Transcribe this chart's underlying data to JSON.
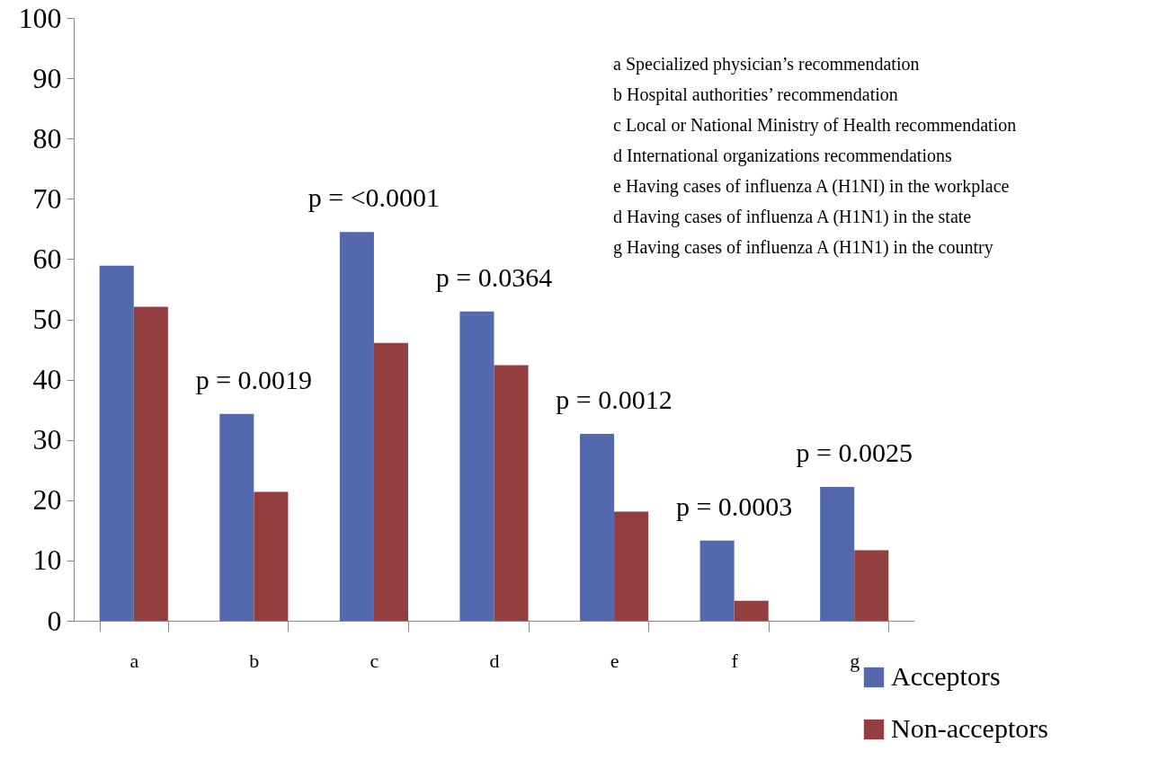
{
  "chart_data": {
    "type": "bar",
    "categories": [
      "a",
      "b",
      "c",
      "d",
      "e",
      "f",
      "g"
    ],
    "series": [
      {
        "name": "Acceptors",
        "color": "#5469ad",
        "values": [
          58.9,
          34.3,
          64.5,
          51.3,
          31.0,
          13.3,
          22.2
        ]
      },
      {
        "name": "Non-acceptors",
        "color": "#943f3f",
        "values": [
          52.1,
          21.4,
          46.1,
          42.4,
          18.1,
          3.3,
          11.7
        ]
      }
    ],
    "ylim": [
      0,
      100
    ],
    "yticks": [
      0,
      10,
      20,
      30,
      40,
      50,
      60,
      70,
      80,
      90,
      100
    ],
    "grid": false,
    "legend": "bottom right",
    "annotations": [
      {
        "text": "p = 0.0019",
        "x": "b",
        "y": 34.3
      },
      {
        "text": "p = <0.0001",
        "x": "c",
        "y": 64.5
      },
      {
        "text": "p = 0.0364",
        "x": "d",
        "y": 51.3
      },
      {
        "text": "p = 0.0012",
        "x": "e",
        "y": 31.0
      },
      {
        "text": "p = 0.0003",
        "x": "f",
        "y": 13.3
      },
      {
        "text": "p = 0.0025",
        "x": "g",
        "y": 22.2
      },
      "a Specialized physician’s recommendation",
      "b Hospital  authorities’ recommendation",
      "c Local or National Ministry of Health recommendation",
      "d International  organizations recommendations",
      "e Having cases of influenza A (H1NI) in the workplace",
      "d Having cases of influenza A (H1N1) in the state",
      "g Having cases of influenza A (H1N1) in the  country"
    ]
  }
}
